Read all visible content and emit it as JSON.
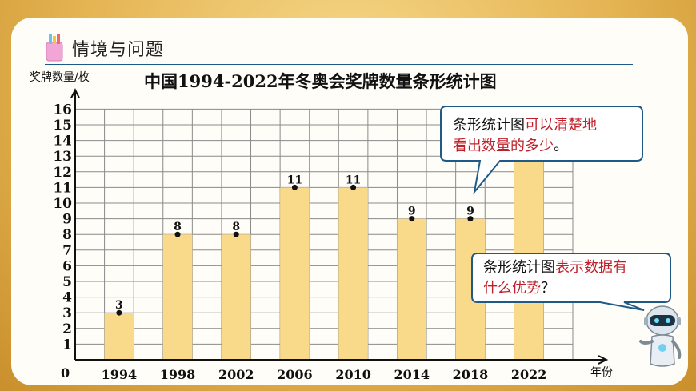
{
  "section": {
    "title": "情境与问题"
  },
  "bubble1": {
    "text_a": "条形统计图",
    "text_b": "可以清楚地",
    "text_c": "看出数量的多少",
    "text_d": "。"
  },
  "bubble2": {
    "text_a": "条形统计图",
    "text_b": "表示数据有",
    "text_c": "什么优势",
    "text_d": "？"
  },
  "colors": {
    "bar": "#f9d98a",
    "grid": "#8a8a8a",
    "highlight": "#c0202a",
    "bubble_border": "#1f5a86",
    "frame": "#d9a441"
  },
  "icons": {
    "section": "pencil-cup-icon",
    "assistant": "robot-icon"
  },
  "chart_data": {
    "type": "bar",
    "title": "中国1994-2022年冬奥会奖牌数量条形统计图",
    "ylabel": "奖牌数量/枚",
    "xlabel": "年份",
    "origin_label": "0",
    "categories": [
      "1994",
      "1998",
      "2002",
      "2006",
      "2010",
      "2014",
      "2018",
      "2022"
    ],
    "values": [
      3,
      8,
      8,
      11,
      11,
      9,
      9,
      15
    ],
    "value_labels": [
      "3",
      "8",
      "8",
      "11",
      "11",
      "9",
      "9",
      ""
    ],
    "ylim": [
      0,
      16
    ],
    "yticks": [
      1,
      2,
      3,
      4,
      5,
      6,
      7,
      8,
      9,
      10,
      11,
      12,
      13,
      14,
      15,
      16
    ],
    "grid": true
  }
}
